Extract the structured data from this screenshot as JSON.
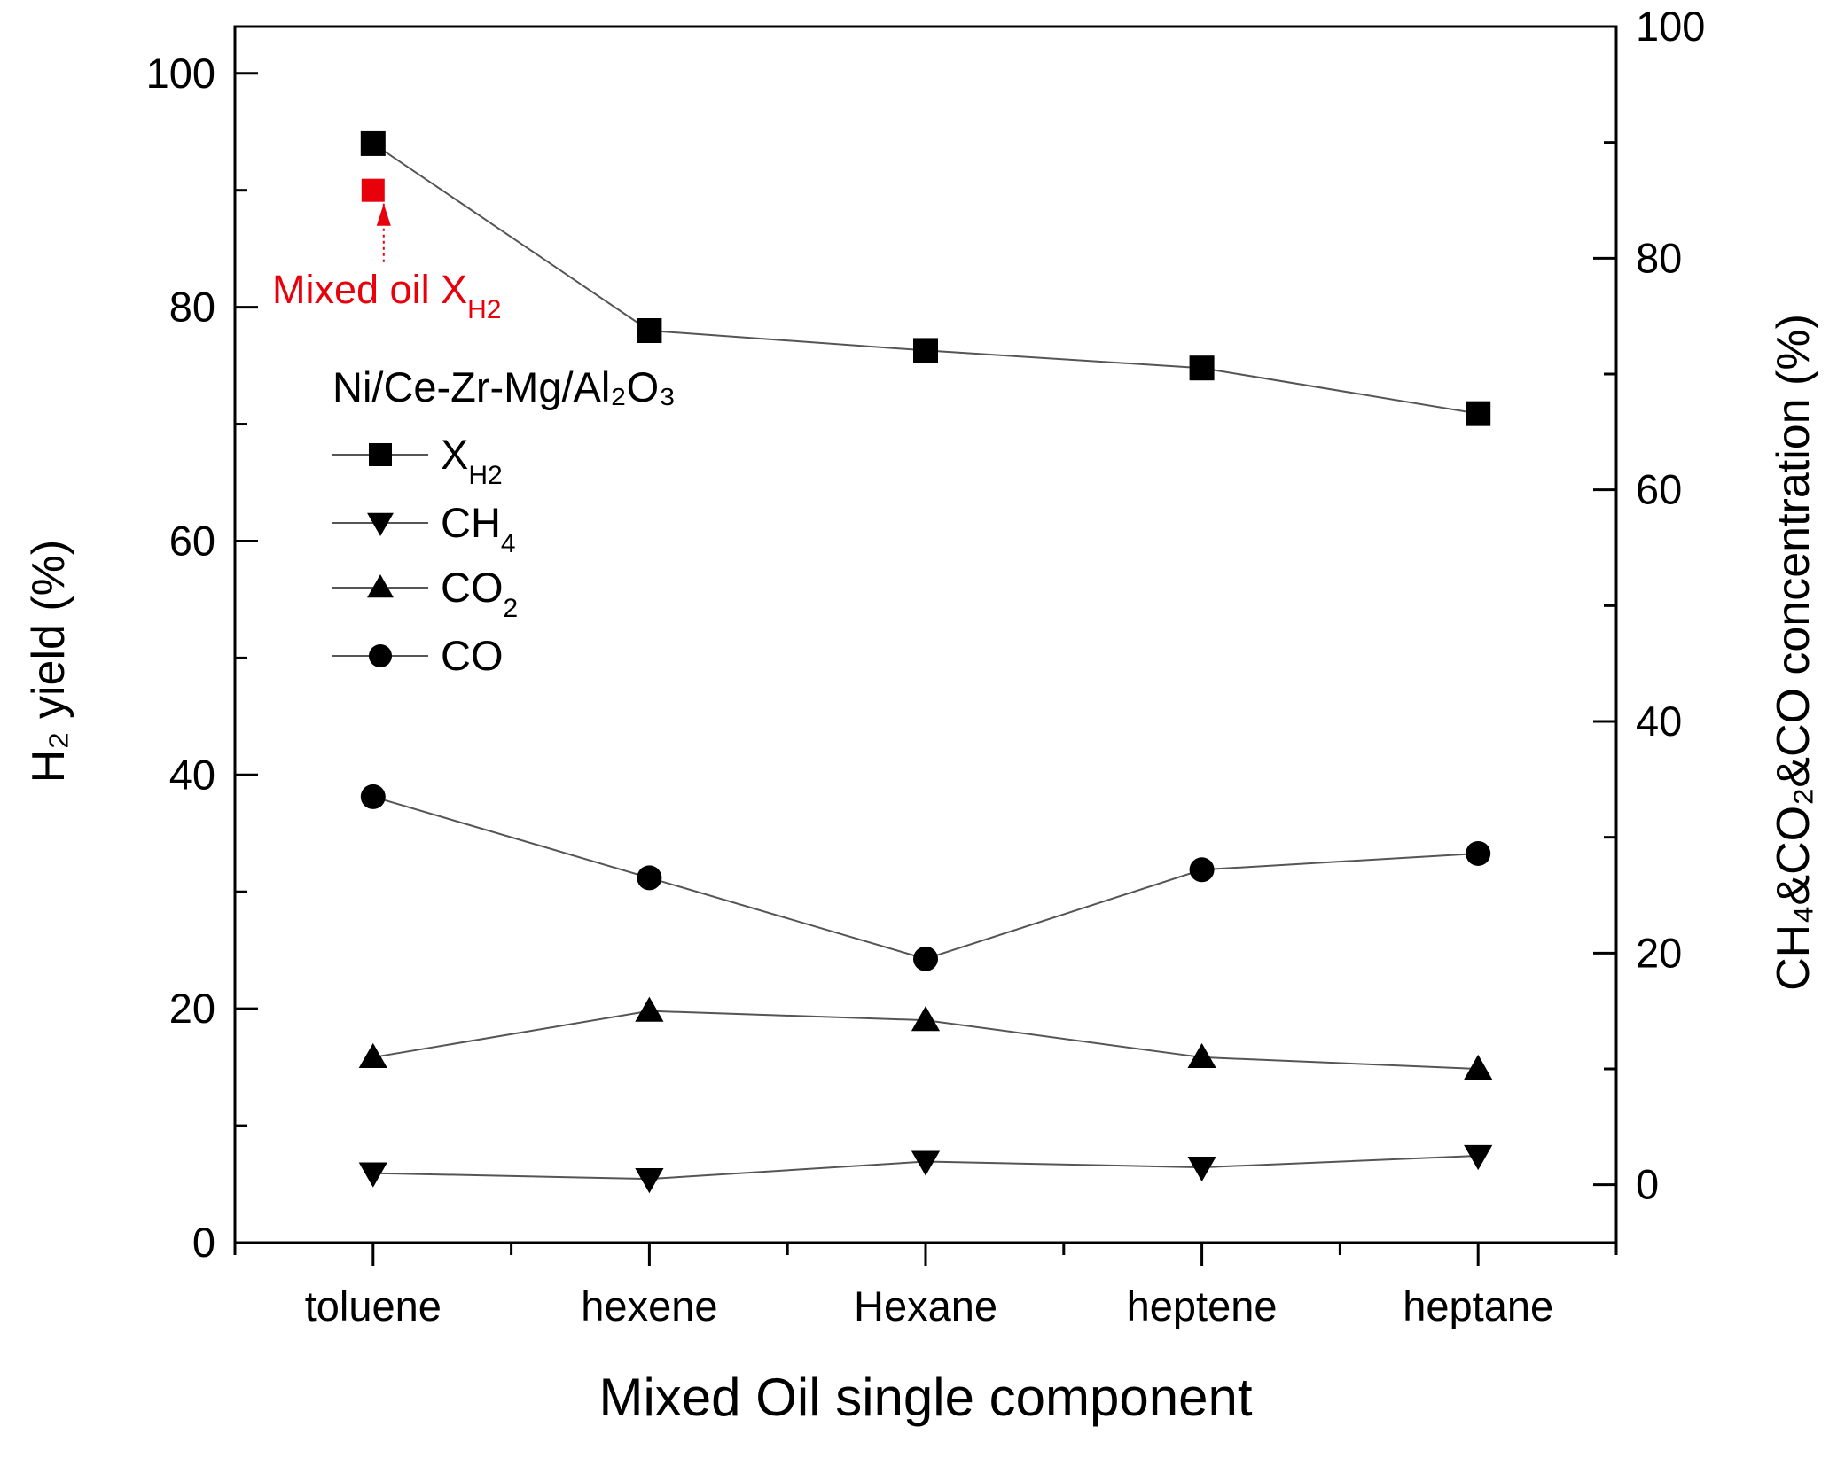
{
  "chart_data": {
    "type": "line",
    "x_title": "Mixed Oil single component",
    "y_left_title": "H₂ yield (%)",
    "y_right_title": "CH₄&CO₂&CO concentration (%)",
    "categories": [
      "toluene",
      "hexene",
      "Hexane",
      "heptene",
      "heptane"
    ],
    "y_left_range": [
      0,
      104
    ],
    "y_left_ticks": [
      "0",
      "20",
      "40",
      "60",
      "80",
      "100"
    ],
    "y_right_range": [
      -5,
      100
    ],
    "y_right_ticks": [
      "0",
      "20",
      "40",
      "60",
      "80",
      "100"
    ],
    "catalyst_label": "Ni/Ce-Zr-Mg/Al₂O₃",
    "series": [
      {
        "name": "X_H2",
        "label": "X",
        "sub": "H2",
        "marker": "square",
        "axis": "left",
        "values": [
          94,
          78,
          76.3,
          74.8,
          70.9
        ]
      },
      {
        "name": "CH4",
        "label": "CH",
        "sub": "4",
        "marker": "triangle-down",
        "axis": "right",
        "values": [
          1,
          0.5,
          2,
          1.5,
          2.5
        ]
      },
      {
        "name": "CO2",
        "label": "CO",
        "sub": "2",
        "marker": "triangle-up",
        "axis": "right",
        "values": [
          11,
          15,
          14.2,
          11,
          10
        ]
      },
      {
        "name": "CO",
        "label": "CO",
        "sub": "",
        "marker": "circle",
        "axis": "right",
        "values": [
          33.5,
          26.5,
          19.5,
          27.2,
          28.6
        ]
      }
    ],
    "annotation": {
      "text": "Mixed oil X",
      "sub": "H2",
      "category": "toluene",
      "value": 90,
      "color": "#e8000b"
    }
  }
}
